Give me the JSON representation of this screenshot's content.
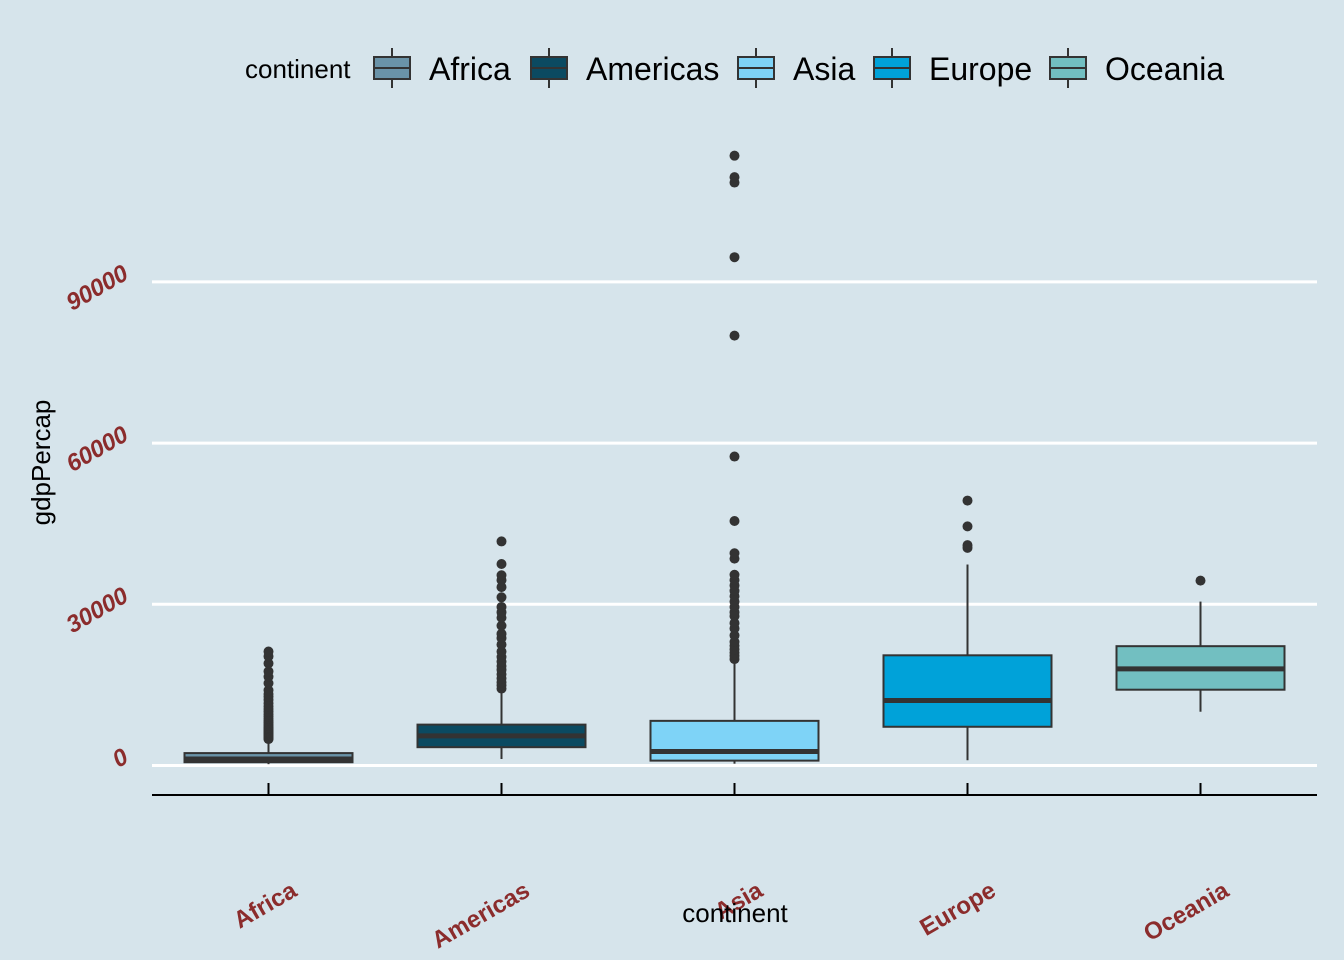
{
  "chart_data": {
    "type": "boxplot",
    "xlabel": "continent",
    "ylabel": "gdpPercap",
    "ylim": [
      -5500,
      122000
    ],
    "yticks": [
      0,
      30000,
      60000,
      90000
    ],
    "grid": "horizontal major lines",
    "legend": {
      "title": "continent",
      "placement": "top"
    },
    "categories": [
      "Africa",
      "Americas",
      "Asia",
      "Europe",
      "Oceania"
    ],
    "colors": [
      "#6a93a8",
      "#0b4a61",
      "#7ed3f7",
      "#00a2d9",
      "#72bfc1"
    ],
    "boxes": [
      {
        "name": "Africa",
        "q1": 600,
        "median": 1200,
        "q3": 2300,
        "whisker_low": 240,
        "whisker_high": 4850,
        "outliers": [
          4900,
          5100,
          5300,
          5500,
          5700,
          5900,
          6100,
          6300,
          6500,
          6700,
          6900,
          7100,
          7400,
          7700,
          8000,
          8300,
          8700,
          9100,
          9500,
          10000,
          10500,
          11000,
          11600,
          12200,
          12800,
          13300,
          14000,
          15300,
          16500,
          17500,
          19000,
          20300,
          21200
        ]
      },
      {
        "name": "Americas",
        "q1": 3400,
        "median": 5500,
        "q3": 7600,
        "whisker_low": 1200,
        "whisker_high": 13900,
        "outliers": [
          14300,
          14900,
          15500,
          16200,
          17000,
          17800,
          18500,
          19300,
          20200,
          21200,
          22500,
          23700,
          24500,
          26000,
          27500,
          28500,
          29500,
          31300,
          33200,
          34500,
          35400,
          37500,
          41700
        ]
      },
      {
        "name": "Asia",
        "q1": 900,
        "median": 2600,
        "q3": 8300,
        "whisker_low": 330,
        "whisker_high": 19400,
        "outliers": [
          19800,
          20400,
          21000,
          21600,
          22300,
          23000,
          24200,
          25500,
          26500,
          27800,
          28500,
          29500,
          30500,
          31500,
          32500,
          33500,
          34500,
          35500,
          38500,
          39500,
          45500,
          57500,
          80000,
          94600,
          108500,
          109500,
          113500
        ]
      },
      {
        "name": "Europe",
        "q1": 7200,
        "median": 12100,
        "q3": 20500,
        "whisker_low": 970,
        "whisker_high": 37400,
        "outliers": [
          40500,
          41000,
          44500,
          49300
        ]
      },
      {
        "name": "Oceania",
        "q1": 14100,
        "median": 17980,
        "q3": 22200,
        "whisker_low": 10000,
        "whisker_high": 30500,
        "outliers": [
          34400
        ]
      }
    ]
  }
}
